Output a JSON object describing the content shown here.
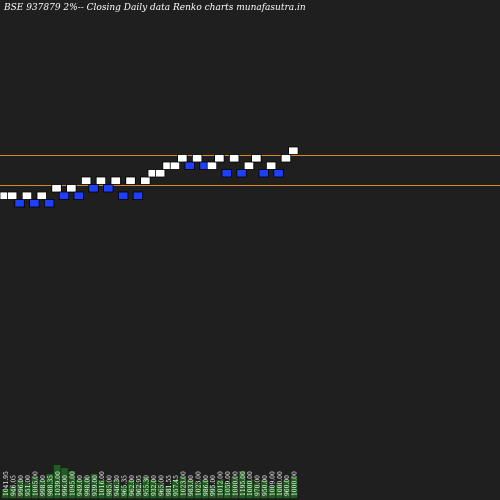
{
  "title": "BSE 937879 2%-- Closing Daily data  Renko  charts munafasutra.in",
  "colors": {
    "background": "#1f1f1f",
    "up_brick": "#ffffff",
    "down_brick": "#1f3fff",
    "brick_border": "#000000",
    "level_line": "#d9881f",
    "volume_bar": "#1f5e1f",
    "label": "#ffffff"
  },
  "chart_data": {
    "type": "renko",
    "title": "BSE 937879 2%-- Closing Daily data  Renko  charts munafasutra.in",
    "bricks": [
      {
        "level": 0,
        "dir": "up"
      },
      {
        "level": 0,
        "dir": "up"
      },
      {
        "level": 0,
        "dir": "down"
      },
      {
        "level": 0,
        "dir": "up"
      },
      {
        "level": 0,
        "dir": "down"
      },
      {
        "level": 0,
        "dir": "up"
      },
      {
        "level": 0,
        "dir": "down"
      },
      {
        "level": 1,
        "dir": "up"
      },
      {
        "level": 1,
        "dir": "down"
      },
      {
        "level": 1,
        "dir": "up"
      },
      {
        "level": 1,
        "dir": "down"
      },
      {
        "level": 2,
        "dir": "up"
      },
      {
        "level": 2,
        "dir": "down"
      },
      {
        "level": 2,
        "dir": "up"
      },
      {
        "level": 2,
        "dir": "down"
      },
      {
        "level": 2,
        "dir": "up"
      },
      {
        "level": 1,
        "dir": "down"
      },
      {
        "level": 2,
        "dir": "up"
      },
      {
        "level": 1,
        "dir": "down"
      },
      {
        "level": 2,
        "dir": "up"
      },
      {
        "level": 3,
        "dir": "up"
      },
      {
        "level": 3,
        "dir": "up"
      },
      {
        "level": 4,
        "dir": "up"
      },
      {
        "level": 4,
        "dir": "up"
      },
      {
        "level": 5,
        "dir": "up"
      },
      {
        "level": 5,
        "dir": "down"
      },
      {
        "level": 5,
        "dir": "up"
      },
      {
        "level": 5,
        "dir": "down"
      },
      {
        "level": 4,
        "dir": "up"
      },
      {
        "level": 5,
        "dir": "up"
      },
      {
        "level": 4,
        "dir": "down"
      },
      {
        "level": 5,
        "dir": "up"
      },
      {
        "level": 4,
        "dir": "down"
      },
      {
        "level": 4,
        "dir": "up"
      },
      {
        "level": 5,
        "dir": "up"
      },
      {
        "level": 4,
        "dir": "down"
      },
      {
        "level": 4,
        "dir": "up"
      },
      {
        "level": 4,
        "dir": "down"
      },
      {
        "level": 5,
        "dir": "up"
      },
      {
        "level": 6,
        "dir": "up"
      }
    ],
    "volume_labels": [
      "1041.95",
      "946.05",
      "996.00",
      "951.00",
      "1005.00",
      "998.00",
      "988.35",
      "1039.00",
      "996.00",
      "1095.00",
      "949.00",
      "998.00",
      "939.00",
      "1016.00",
      "985.00",
      "946.30",
      "965.35",
      "962.00",
      "962.95",
      "955.30",
      "932.00",
      "965.00",
      "981.55",
      "957.45",
      "1023.00",
      "983.00",
      "1023.00",
      "986.00",
      "995.00",
      "1012.00",
      "1059.00",
      "1000.00",
      "1195.00",
      "1000.00",
      "970.00",
      "950.00",
      "1009.00",
      "1000.00",
      "960.00",
      "1000.00"
    ],
    "volumes": [
      0.15,
      0.2,
      0.3,
      0.25,
      0.35,
      0.3,
      0.4,
      0.55,
      0.5,
      0.45,
      0.3,
      0.35,
      0.4,
      0.3,
      0.25,
      0.3,
      0.2,
      0.3,
      0.25,
      0.35,
      0.3,
      0.25,
      0.2,
      0.3,
      0.35,
      0.3,
      0.25,
      0.3,
      0.2,
      0.3,
      0.25,
      0.35,
      0.45,
      0.3,
      0.25,
      0.3,
      0.2,
      0.25,
      0.3,
      0.35
    ],
    "level_lines": [
      "upper",
      "lower"
    ]
  }
}
